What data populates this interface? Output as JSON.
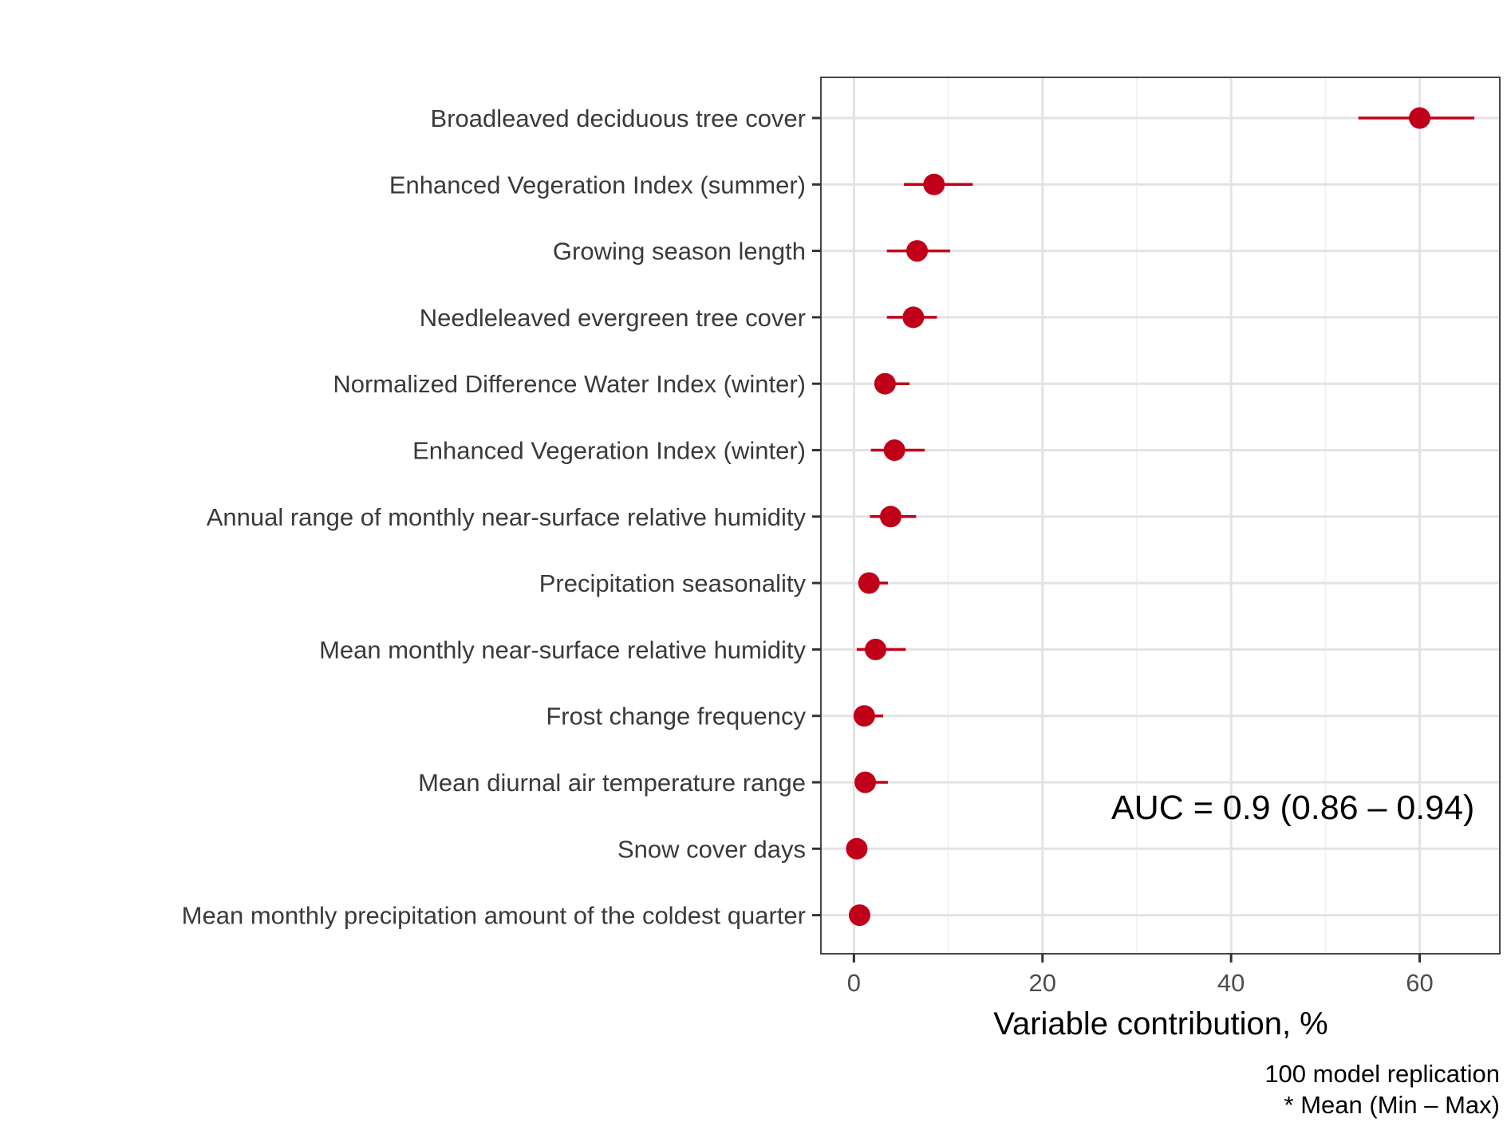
{
  "chart_data": {
    "type": "dot-range",
    "xlabel": "Variable contribution, %",
    "xlim": [
      -3.5,
      68.5
    ],
    "x_ticks": [
      0,
      20,
      40,
      60
    ],
    "x_tick_labels": [
      "0",
      "20",
      "40",
      "60"
    ],
    "grid": true,
    "point_color": "#C00018",
    "categories": [
      "Broadleaved deciduous tree cover",
      "Enhanced Vegeration Index (summer)",
      "Growing season length",
      "Needleleaved evergreen tree cover",
      "Normalized Difference Water Index (winter)",
      "Enhanced Vegeration Index (winter)",
      "Annual range of monthly near-surface relative humidity",
      "Precipitation seasonality",
      "Mean monthly near-surface relative humidity",
      "Frost change frequency",
      "Mean diurnal air temperature range",
      "Snow cover days",
      "Mean monthly precipitation amount of the coldest quarter"
    ],
    "mean": [
      60.0,
      8.5,
      6.7,
      6.3,
      3.3,
      4.3,
      3.9,
      1.6,
      2.3,
      1.1,
      1.2,
      0.3,
      0.6
    ],
    "min": [
      53.5,
      5.3,
      3.5,
      3.5,
      2.3,
      1.8,
      1.7,
      0.5,
      0.3,
      0.2,
      0.4,
      0.0,
      0.1
    ],
    "max": [
      65.8,
      12.6,
      10.2,
      8.8,
      5.9,
      7.5,
      6.6,
      3.6,
      5.5,
      3.1,
      3.6,
      0.8,
      1.1
    ],
    "annotation": "AUC = 0.9 (0.86 – 0.94)",
    "caption_lines": [
      "100 model replication",
      "* Mean (Min – Max)"
    ]
  }
}
